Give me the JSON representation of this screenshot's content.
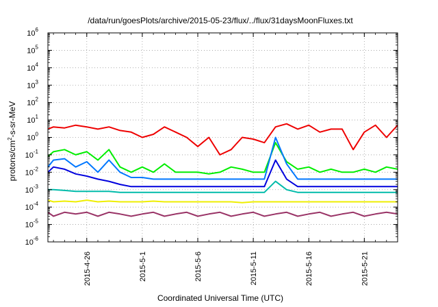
{
  "chart_data": {
    "type": "line",
    "title": "/data/run/goesPlots/archive/2015-05-23/flux/../flux/31daysMoonFluxes.txt",
    "xlabel": "Coordinated Universal Time (UTC)",
    "ylabel": {
      "base": "protons/cm",
      "sup": "2",
      "rest": "-s-sr-MeV"
    },
    "yscale": "log",
    "ylim": [
      1e-06,
      1000000.0
    ],
    "y_ticks": [
      {
        "exp": "-6"
      },
      {
        "exp": "-5"
      },
      {
        "exp": "-4"
      },
      {
        "exp": "-3"
      },
      {
        "exp": "-2"
      },
      {
        "exp": "-1"
      },
      {
        "exp": "0"
      },
      {
        "exp": "1"
      },
      {
        "exp": "2"
      },
      {
        "exp": "3"
      },
      {
        "exp": "4"
      },
      {
        "exp": "5"
      },
      {
        "exp": "6"
      }
    ],
    "xlim": [
      "2015-04-22T12:00",
      "2015-05-24T00:00"
    ],
    "x_ticks": [
      {
        "label": "2015-4-26",
        "date": "2015-04-26"
      },
      {
        "label": "2015-5-1",
        "date": "2015-05-01"
      },
      {
        "label": "2015-5-6",
        "date": "2015-05-06"
      },
      {
        "label": "2015-5-11",
        "date": "2015-05-11"
      },
      {
        "label": "2015-5-16",
        "date": "2015-05-16"
      },
      {
        "label": "2015-5-21",
        "date": "2015-05-21"
      }
    ],
    "grid": true,
    "legend": "none",
    "x": [
      "2015-04-22",
      "2015-04-23",
      "2015-04-24",
      "2015-04-25",
      "2015-04-26",
      "2015-04-27",
      "2015-04-28",
      "2015-04-29",
      "2015-04-30",
      "2015-05-01",
      "2015-05-02",
      "2015-05-03",
      "2015-05-04",
      "2015-05-05",
      "2015-05-06",
      "2015-05-07",
      "2015-05-08",
      "2015-05-09",
      "2015-05-10",
      "2015-05-11",
      "2015-05-12",
      "2015-05-13",
      "2015-05-14",
      "2015-05-15",
      "2015-05-16",
      "2015-05-17",
      "2015-05-18",
      "2015-05-19",
      "2015-05-20",
      "2015-05-21",
      "2015-05-22",
      "2015-05-23",
      "2015-05-24"
    ],
    "series": [
      {
        "color": "#ee0000",
        "values": [
          3.0,
          4.0,
          3.5,
          5.0,
          4.0,
          3.0,
          4.0,
          2.5,
          2.0,
          1.0,
          1.5,
          4.0,
          2.0,
          1.0,
          0.3,
          1.0,
          0.1,
          0.2,
          1.0,
          0.8,
          0.5,
          4.0,
          6.0,
          3.0,
          5.0,
          2.0,
          3.0,
          3.0,
          0.2,
          2.0,
          5.0,
          1.0,
          5.0
        ]
      },
      {
        "color": "#00ee00",
        "values": [
          0.08,
          0.15,
          0.2,
          0.1,
          0.15,
          0.05,
          0.2,
          0.02,
          0.01,
          0.02,
          0.01,
          0.03,
          0.01,
          0.01,
          0.01,
          0.008,
          0.01,
          0.02,
          0.015,
          0.01,
          0.01,
          0.5,
          0.04,
          0.015,
          0.02,
          0.01,
          0.015,
          0.01,
          0.01,
          0.015,
          0.01,
          0.02,
          0.015
        ]
      },
      {
        "color": "#0077ff",
        "values": [
          0.02,
          0.05,
          0.06,
          0.02,
          0.04,
          0.01,
          0.05,
          0.01,
          0.005,
          0.005,
          0.004,
          0.004,
          0.004,
          0.004,
          0.004,
          0.004,
          0.004,
          0.004,
          0.004,
          0.004,
          0.004,
          1.0,
          0.03,
          0.004,
          0.004,
          0.004,
          0.004,
          0.004,
          0.004,
          0.004,
          0.004,
          0.004,
          0.004
        ]
      },
      {
        "color": "#0000dd",
        "values": [
          0.01,
          0.02,
          0.015,
          0.008,
          0.006,
          0.004,
          0.003,
          0.002,
          0.0015,
          0.0015,
          0.0015,
          0.0015,
          0.0015,
          0.0015,
          0.0015,
          0.0015,
          0.0015,
          0.0015,
          0.0015,
          0.0015,
          0.0015,
          0.05,
          0.004,
          0.0015,
          0.0015,
          0.0015,
          0.0015,
          0.0015,
          0.0015,
          0.0015,
          0.0015,
          0.0015,
          0.0015
        ]
      },
      {
        "color": "#00bbaa",
        "values": [
          0.001,
          0.001,
          0.0009,
          0.0008,
          0.0008,
          0.0008,
          0.0008,
          0.0007,
          0.0007,
          0.0007,
          0.0007,
          0.0007,
          0.0007,
          0.0007,
          0.0007,
          0.0007,
          0.0007,
          0.0007,
          0.0007,
          0.0007,
          0.0007,
          0.003,
          0.001,
          0.0007,
          0.0007,
          0.0007,
          0.0007,
          0.0007,
          0.0007,
          0.0007,
          0.0007,
          0.0007,
          0.0007
        ]
      },
      {
        "color": "#eeee00",
        "values": [
          0.00025,
          0.0002,
          0.00022,
          0.0002,
          0.00025,
          0.0002,
          0.00022,
          0.0002,
          0.0002,
          0.0002,
          0.00022,
          0.0002,
          0.0002,
          0.0002,
          0.0002,
          0.0002,
          0.0002,
          0.0002,
          0.00018,
          0.0002,
          0.0002,
          0.0002,
          0.0002,
          0.0002,
          0.0002,
          0.0002,
          0.0002,
          0.0002,
          0.0002,
          0.0002,
          0.0002,
          0.0002,
          0.0002
        ]
      },
      {
        "color": "#993366",
        "values": [
          5e-05,
          3e-05,
          5e-05,
          4e-05,
          5e-05,
          3e-05,
          5e-05,
          4e-05,
          3e-05,
          4e-05,
          5e-05,
          3e-05,
          4e-05,
          5e-05,
          3e-05,
          4e-05,
          5e-05,
          3e-05,
          4e-05,
          5e-05,
          3e-05,
          4e-05,
          5e-05,
          3e-05,
          4e-05,
          5e-05,
          3e-05,
          4e-05,
          5e-05,
          3e-05,
          4e-05,
          5e-05,
          4e-05
        ]
      }
    ]
  }
}
